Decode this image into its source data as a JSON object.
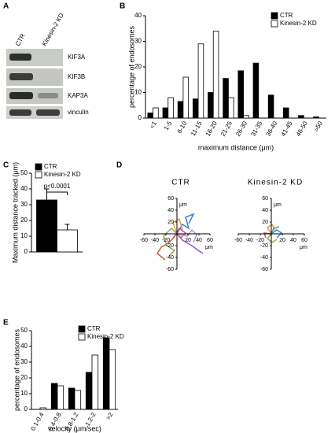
{
  "panel_labels": [
    "A",
    "B",
    "C",
    "D",
    "E"
  ],
  "blot": {
    "lanes": [
      "CTR",
      "Kinesin-2 KD"
    ],
    "bands": [
      "KIF3A",
      "KIF3B",
      "KAP3A",
      "vinculin"
    ]
  },
  "chart_data": [
    {
      "type": "bar",
      "categories": [
        "<1",
        "1-5",
        "6-10",
        "11-15",
        "16-20",
        "21-25",
        "26-30",
        "31-35",
        "36-40",
        "41-45",
        "46-50",
        ">50"
      ],
      "series": [
        {
          "name": "CTR",
          "color": "#000000",
          "values": [
            2,
            4,
            6.5,
            7.5,
            10,
            15.5,
            18.5,
            21.5,
            9,
            4,
            1,
            0.5
          ]
        },
        {
          "name": "Kinesin-2 KD",
          "color": "#ffffff",
          "values": [
            4,
            8,
            16,
            29,
            34,
            8,
            1,
            0,
            0,
            0,
            0,
            0
          ]
        }
      ],
      "ylim": [
        0,
        40
      ],
      "yticks": [
        0,
        10,
        20,
        30,
        40
      ],
      "xlabel": "maximum distance (μm)",
      "ylabel": "percentage of endosomes",
      "legend": "upper right"
    },
    {
      "type": "bar",
      "series": [
        {
          "name": "CTR",
          "color": "#000000",
          "values": [
            33
          ],
          "errors": [
            7
          ]
        },
        {
          "name": "Kinesin-2 KD",
          "color": "#ffffff",
          "values": [
            14
          ],
          "errors": [
            3.5
          ]
        }
      ],
      "ylim": [
        0,
        50
      ],
      "yticks": [
        0,
        10,
        20,
        30,
        40,
        50
      ],
      "ylabel": "Maximum distance tracked (μm)",
      "annotation": "p<0.0001",
      "legend": "upper left"
    },
    {
      "type": "trajectory",
      "title": "CTR",
      "xlim": [
        -60,
        60
      ],
      "ylim": [
        -60,
        60
      ],
      "xticks": [
        -60,
        -40,
        -20,
        20,
        40,
        60
      ],
      "yticks": [
        60,
        40,
        20,
        -20,
        -40,
        -60
      ],
      "xlabel": "μm",
      "ylabel": "μm"
    },
    {
      "type": "trajectory",
      "title": "Kinesin-2 KD",
      "xlim": [
        -60,
        60
      ],
      "ylim": [
        -60,
        60
      ],
      "xticks": [
        -60,
        -40,
        -20,
        20,
        40,
        60
      ],
      "yticks": [
        60,
        40,
        20,
        -20,
        -40,
        -60
      ],
      "xlabel": "μm",
      "ylabel": "μm"
    },
    {
      "type": "bar",
      "categories": [
        "0.1-0.4",
        "0.4-0.8",
        "0.8-1.2",
        "1.2-2",
        ">2"
      ],
      "series": [
        {
          "name": "CTR",
          "color": "#000000",
          "values": [
            0,
            16.5,
            13.5,
            23.5,
            45.5
          ]
        },
        {
          "name": "Kinesin-2 KD",
          "color": "#ffffff",
          "values": [
            1,
            15,
            12,
            34.5,
            38
          ]
        }
      ],
      "ylim": [
        0,
        50
      ],
      "yticks": [
        0,
        10,
        20,
        30,
        40,
        50
      ],
      "xlabel": "velocity (μm/sec)",
      "ylabel": "percentage of endosomes",
      "legend": "upper right"
    }
  ]
}
